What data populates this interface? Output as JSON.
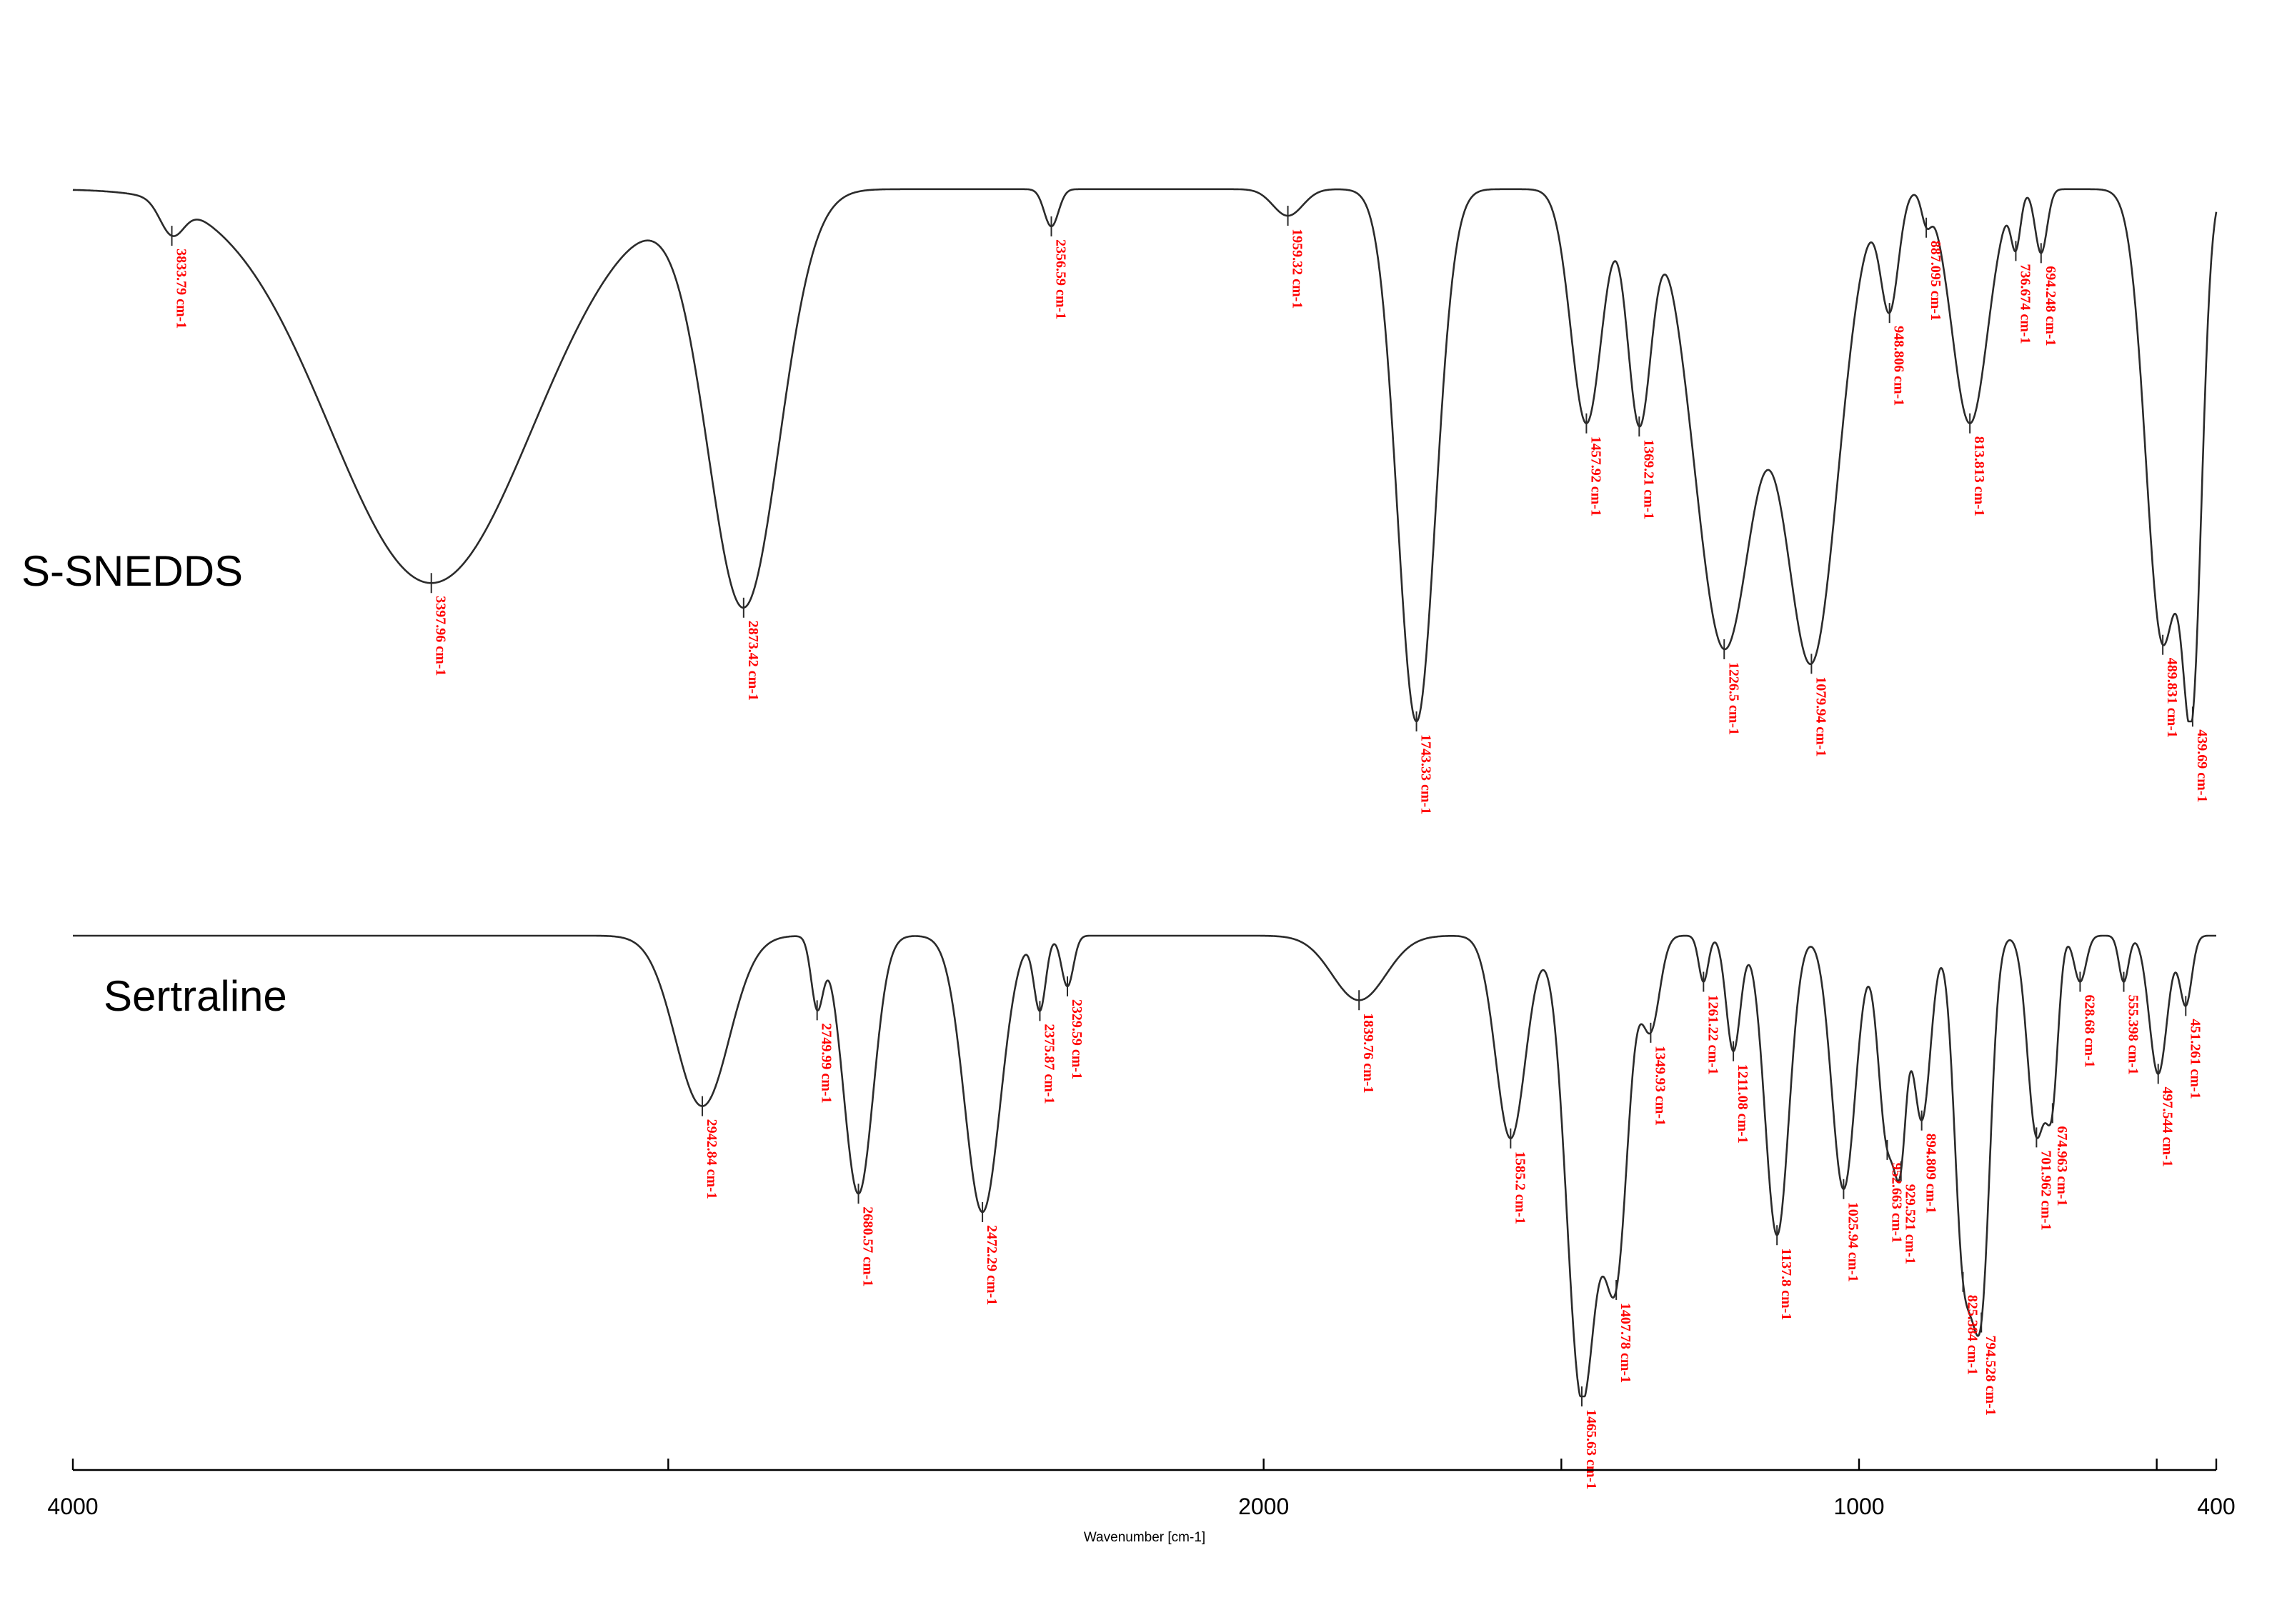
{
  "chart_data": {
    "type": "line",
    "xlabel": "Wavenumber [cm-1]",
    "xlim": [
      4000,
      400
    ],
    "x_ticks": [
      {
        "value": 4000,
        "label": "4000"
      },
      {
        "value": 3000,
        "label": ""
      },
      {
        "value": 2000,
        "label": "2000"
      },
      {
        "value": 1500,
        "label": ""
      },
      {
        "value": 1000,
        "label": "1000"
      },
      {
        "value": 500,
        "label": ""
      },
      {
        "value": 400,
        "label": "400"
      }
    ],
    "series": [
      {
        "name": "S-SNEDDS",
        "baseline": 0.08,
        "peaks": [
          {
            "x": 3833.79,
            "depth": 0.06,
            "w": 20,
            "label": "3833.79 cm-1"
          },
          {
            "x": 3397.96,
            "depth": 0.74,
            "w": 170,
            "label": "3397.96 cm-1"
          },
          {
            "x": 2873.42,
            "depth": 0.78,
            "w": 60,
            "label": "2873.42 cm-1"
          },
          {
            "x": 2356.59,
            "depth": 0.07,
            "w": 12,
            "label": "2356.59 cm-1"
          },
          {
            "x": 1959.32,
            "depth": 0.05,
            "w": 25,
            "label": "1959.32 cm-1"
          },
          {
            "x": 1743.33,
            "depth": 1.0,
            "w": 32,
            "label": "1743.33 cm-1"
          },
          {
            "x": 1457.92,
            "depth": 0.44,
            "w": 26,
            "label": "1457.92 cm-1"
          },
          {
            "x": 1369.21,
            "depth": 0.43,
            "w": 20,
            "label": "1369.21 cm-1"
          },
          {
            "x": 1226.5,
            "depth": 0.86,
            "w": 50,
            "label": "1226.5 cm-1"
          },
          {
            "x": 1079.94,
            "depth": 0.88,
            "w": 45,
            "label": "1079.94 cm-1"
          },
          {
            "x": 948.806,
            "depth": 0.22,
            "w": 15,
            "label": "948.806 cm-1"
          },
          {
            "x": 887.095,
            "depth": 0.05,
            "w": 8,
            "label": "887.095 cm-1"
          },
          {
            "x": 813.813,
            "depth": 0.44,
            "w": 30,
            "label": "813.813 cm-1"
          },
          {
            "x": 736.674,
            "depth": 0.1,
            "w": 8,
            "label": "736.674 cm-1"
          },
          {
            "x": 694.248,
            "depth": 0.12,
            "w": 10,
            "label": "694.248 cm-1"
          },
          {
            "x": 489.831,
            "depth": 0.85,
            "w": 28,
            "label": "489.831 cm-1"
          },
          {
            "x": 439.69,
            "depth": 0.82,
            "w": 16,
            "label": "439.69 cm-1"
          }
        ]
      },
      {
        "name": "Sertraline",
        "baseline": 0.03,
        "peaks": [
          {
            "x": 2942.84,
            "depth": 0.37,
            "w": 45,
            "label": "2942.84 cm-1"
          },
          {
            "x": 2749.99,
            "depth": 0.15,
            "w": 10,
            "label": "2749.99 cm-1"
          },
          {
            "x": 2680.57,
            "depth": 0.56,
            "w": 25,
            "label": "2680.57 cm-1"
          },
          {
            "x": 2472.29,
            "depth": 0.6,
            "w": 30,
            "label": "2472.29 cm-1"
          },
          {
            "x": 2375.87,
            "depth": 0.16,
            "w": 10,
            "label": "2375.87 cm-1"
          },
          {
            "x": 2329.59,
            "depth": 0.11,
            "w": 10,
            "label": "2329.59 cm-1"
          },
          {
            "x": 1839.76,
            "depth": 0.14,
            "w": 45,
            "label": "1839.76 cm-1"
          },
          {
            "x": 1585.2,
            "depth": 0.44,
            "w": 25,
            "label": "1585.2 cm-1"
          },
          {
            "x": 1465.63,
            "depth": 1.0,
            "w": 25,
            "label": "1465.63 cm-1"
          },
          {
            "x": 1407.78,
            "depth": 0.7,
            "w": 20,
            "label": "1407.78 cm-1"
          },
          {
            "x": 1349.93,
            "depth": 0.2,
            "w": 15,
            "label": "1349.93 cm-1"
          },
          {
            "x": 1261.22,
            "depth": 0.1,
            "w": 8,
            "label": "1261.22 cm-1"
          },
          {
            "x": 1211.08,
            "depth": 0.25,
            "w": 12,
            "label": "1211.08 cm-1"
          },
          {
            "x": 1137.8,
            "depth": 0.65,
            "w": 20,
            "label": "1137.8 cm-1"
          },
          {
            "x": 1025.94,
            "depth": 0.55,
            "w": 20,
            "label": "1025.94 cm-1"
          },
          {
            "x": 952.663,
            "depth": 0.44,
            "w": 15,
            "label": "952.663 cm-1"
          },
          {
            "x": 929.521,
            "depth": 0.35,
            "w": 10,
            "label": "929.521 cm-1"
          },
          {
            "x": 894.809,
            "depth": 0.4,
            "w": 15,
            "label": "894.809 cm-1"
          },
          {
            "x": 825.384,
            "depth": 0.66,
            "w": 15,
            "label": "825.384 cm-1"
          },
          {
            "x": 794.528,
            "depth": 0.76,
            "w": 15,
            "label": "794.528 cm-1"
          },
          {
            "x": 701.962,
            "depth": 0.43,
            "w": 15,
            "label": "701.962 cm-1"
          },
          {
            "x": 674.963,
            "depth": 0.3,
            "w": 10,
            "label": "674.963 cm-1"
          },
          {
            "x": 628.68,
            "depth": 0.1,
            "w": 10,
            "label": "628.68 cm-1"
          },
          {
            "x": 555.398,
            "depth": 0.1,
            "w": 8,
            "label": "555.398 cm-1"
          },
          {
            "x": 497.544,
            "depth": 0.3,
            "w": 15,
            "label": "497.544 cm-1"
          },
          {
            "x": 451.261,
            "depth": 0.15,
            "w": 10,
            "label": "451.261 cm-1"
          }
        ]
      }
    ]
  }
}
